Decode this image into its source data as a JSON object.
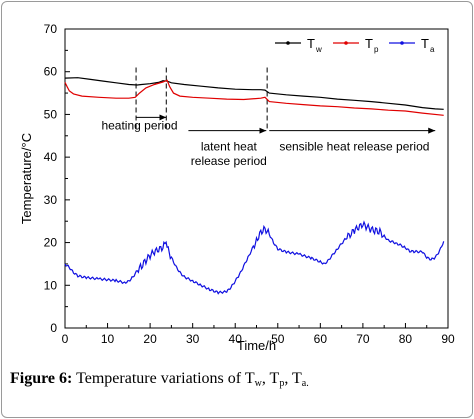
{
  "chart_data": {
    "type": "line",
    "title": "",
    "xlabel": "Time/h",
    "ylabel": "Temperature/°C",
    "xlim": [
      0,
      90
    ],
    "ylim": [
      0,
      70
    ],
    "xticks": [
      "0",
      "10",
      "20",
      "30",
      "40",
      "50",
      "60",
      "70",
      "80",
      "90"
    ],
    "yticks": [
      "0",
      "10",
      "20",
      "30",
      "40",
      "50",
      "60",
      "70"
    ],
    "grid": false,
    "legend_position": "top-right",
    "series": [
      {
        "name": "T_w",
        "legend_main": "T",
        "legend_sub": "w",
        "color": "#000000",
        "points": [
          [
            0,
            58.5
          ],
          [
            3,
            58.6
          ],
          [
            6,
            58.2
          ],
          [
            9,
            57.8
          ],
          [
            12,
            57.4
          ],
          [
            15,
            57.0
          ],
          [
            17,
            56.9
          ],
          [
            18,
            57.0
          ],
          [
            20,
            57.2
          ],
          [
            22,
            57.5
          ],
          [
            23,
            57.9
          ],
          [
            24,
            57.8
          ],
          [
            25,
            57.4
          ],
          [
            28,
            57.0
          ],
          [
            32,
            56.6
          ],
          [
            36,
            56.2
          ],
          [
            40,
            55.9
          ],
          [
            44,
            55.8
          ],
          [
            46,
            55.8
          ],
          [
            47,
            55.7
          ],
          [
            48,
            55.0
          ],
          [
            52,
            54.6
          ],
          [
            56,
            54.3
          ],
          [
            60,
            54.0
          ],
          [
            64,
            53.6
          ],
          [
            68,
            53.3
          ],
          [
            72,
            53.0
          ],
          [
            76,
            52.6
          ],
          [
            80,
            52.2
          ],
          [
            84,
            51.6
          ],
          [
            87,
            51.3
          ],
          [
            89,
            51.2
          ]
        ]
      },
      {
        "name": "T_p",
        "legend_main": "T",
        "legend_sub": "p",
        "color": "#e00000",
        "points": [
          [
            0,
            57.5
          ],
          [
            0.5,
            56.5
          ],
          [
            1,
            55.5
          ],
          [
            2,
            54.8
          ],
          [
            4,
            54.3
          ],
          [
            8,
            54.0
          ],
          [
            12,
            53.8
          ],
          [
            15,
            53.8
          ],
          [
            16.5,
            54.0
          ],
          [
            17.5,
            55.0
          ],
          [
            19,
            56.2
          ],
          [
            21,
            57.0
          ],
          [
            23,
            57.6
          ],
          [
            24,
            58.0
          ],
          [
            24.6,
            56.5
          ],
          [
            25.5,
            55.0
          ],
          [
            27,
            54.3
          ],
          [
            30,
            54.0
          ],
          [
            34,
            53.8
          ],
          [
            38,
            53.6
          ],
          [
            42,
            53.5
          ],
          [
            46,
            53.8
          ],
          [
            47,
            54.0
          ],
          [
            48,
            53.0
          ],
          [
            52,
            52.6
          ],
          [
            56,
            52.3
          ],
          [
            60,
            52.0
          ],
          [
            64,
            51.8
          ],
          [
            68,
            51.5
          ],
          [
            72,
            51.3
          ],
          [
            76,
            51.0
          ],
          [
            80,
            50.8
          ],
          [
            84,
            50.3
          ],
          [
            89,
            49.8
          ]
        ]
      },
      {
        "name": "T_a",
        "legend_main": "T",
        "legend_sub": "a",
        "color": "#1010e0",
        "points": [
          [
            0,
            15.0
          ],
          [
            1,
            14.2
          ],
          [
            2,
            13.0
          ],
          [
            3,
            12.2
          ],
          [
            5,
            11.8
          ],
          [
            8,
            11.5
          ],
          [
            12,
            11.1
          ],
          [
            14,
            10.6
          ],
          [
            15,
            11.0
          ],
          [
            16,
            12.0
          ],
          [
            17,
            13.5
          ],
          [
            18,
            14.5
          ],
          [
            19,
            15.8
          ],
          [
            20,
            17.0
          ],
          [
            21,
            17.8
          ],
          [
            22,
            18.3
          ],
          [
            23,
            18.8
          ],
          [
            23.5,
            19.8
          ],
          [
            24,
            18.8
          ],
          [
            25,
            16.5
          ],
          [
            26,
            14.5
          ],
          [
            27,
            13.0
          ],
          [
            28,
            12.0
          ],
          [
            30,
            11.0
          ],
          [
            32,
            10.0
          ],
          [
            34,
            9.0
          ],
          [
            36,
            8.3
          ],
          [
            38,
            8.5
          ],
          [
            39,
            9.5
          ],
          [
            41,
            12.5
          ],
          [
            43,
            16.5
          ],
          [
            45,
            20.5
          ],
          [
            46,
            22.5
          ],
          [
            47,
            23.3
          ],
          [
            48,
            22.0
          ],
          [
            49,
            20.0
          ],
          [
            50,
            18.5
          ],
          [
            52,
            17.8
          ],
          [
            55,
            17.3
          ],
          [
            58,
            16.3
          ],
          [
            60,
            15.5
          ],
          [
            61,
            15.0
          ],
          [
            62,
            16.0
          ],
          [
            64,
            18.5
          ],
          [
            66,
            21.0
          ],
          [
            68,
            22.8
          ],
          [
            69,
            23.5
          ],
          [
            70,
            24.2
          ],
          [
            71,
            23.6
          ],
          [
            72,
            23.0
          ],
          [
            73,
            22.8
          ],
          [
            74,
            22.5
          ],
          [
            75,
            21.5
          ],
          [
            76,
            20.5
          ],
          [
            78,
            19.8
          ],
          [
            80,
            18.8
          ],
          [
            81,
            18.0
          ],
          [
            82,
            17.9
          ],
          [
            84,
            17.8
          ],
          [
            85,
            16.5
          ],
          [
            86,
            16.0
          ],
          [
            87,
            16.5
          ],
          [
            88,
            18.0
          ],
          [
            89,
            20.3
          ]
        ]
      }
    ],
    "annotations": [
      {
        "text": "heating period",
        "x": 17.5,
        "y": 46.5
      },
      {
        "text": "latent heat",
        "x": 38.5,
        "y": 41.5
      },
      {
        "text": "release period",
        "x": 38.5,
        "y": 38.2
      },
      {
        "text": "sensible heat release period",
        "x": 68,
        "y": 41.5
      }
    ],
    "dashed_lines_x": [
      16.7,
      23.8,
      47.5
    ],
    "arrows": [
      {
        "y": 49.3,
        "from": 16.7,
        "to": 23.8,
        "direction": "right"
      },
      {
        "y": 46.2,
        "from": 29,
        "to": 47.3,
        "direction": "right"
      },
      {
        "y": 46.2,
        "from": 48,
        "to": 87,
        "direction": "right"
      }
    ]
  },
  "caption": {
    "label": "Figure 6:",
    "text": "Temperature variations of T",
    "sub1": "w",
    "sep1": ", T",
    "sub2": "p",
    "sep2": ", T",
    "sub3": "a.",
    "end": ""
  }
}
